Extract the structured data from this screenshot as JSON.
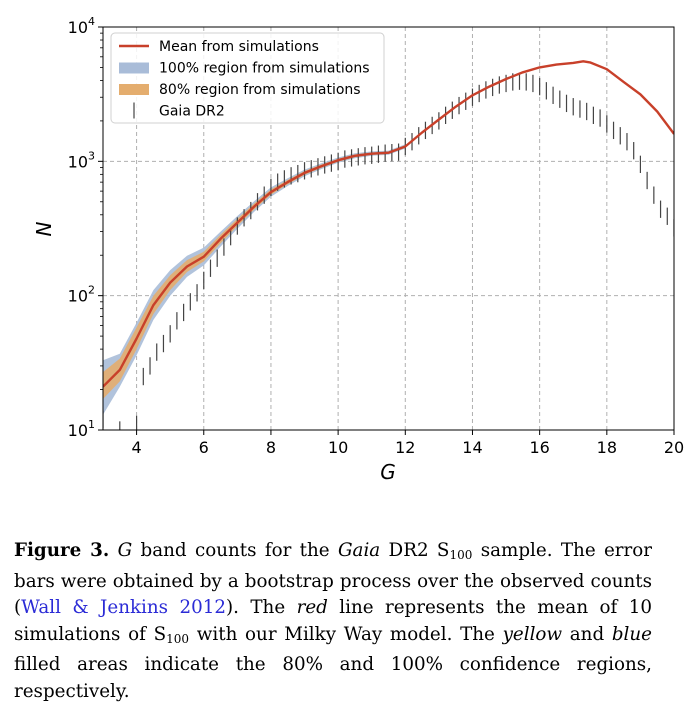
{
  "chart_data": {
    "type": "line",
    "xlabel": "G",
    "ylabel": "N",
    "xlim": [
      3,
      20
    ],
    "ylim": [
      10,
      10000
    ],
    "yscale": "log",
    "grid": true,
    "legend_placement": "top-left",
    "x_ticks": [
      4,
      6,
      8,
      10,
      12,
      14,
      16,
      18,
      20
    ],
    "x_tick_labels": [
      "4",
      "6",
      "8",
      "10",
      "12",
      "14",
      "16",
      "18",
      "20"
    ],
    "y_ticks": [
      10,
      100,
      1000,
      10000
    ],
    "y_tick_labels": [
      {
        "base": "10",
        "exp": "1"
      },
      {
        "base": "10",
        "exp": "2"
      },
      {
        "base": "10",
        "exp": "3"
      },
      {
        "base": "10",
        "exp": "4"
      }
    ],
    "legend": [
      {
        "label": "Mean from simulations",
        "kind": "line",
        "color": "#c8402a"
      },
      {
        "label": "100% region from simulations",
        "kind": "patch",
        "color": "#a9bcd8"
      },
      {
        "label": "80% region from simulations",
        "kind": "patch",
        "color": "#e4ad6e"
      },
      {
        "label": "Gaia DR2",
        "kind": "errorbar",
        "color": "#444444"
      }
    ],
    "colors": {
      "mean": "#c8402a",
      "region100": "#a9bcd8",
      "region80": "#e4ad6e",
      "gaia": "#444444"
    },
    "series": [
      {
        "name": "Mean from simulations",
        "x": [
          3.0,
          3.5,
          4.0,
          4.5,
          5.0,
          5.5,
          6.0,
          6.5,
          7.0,
          7.5,
          8.0,
          8.5,
          9.0,
          9.5,
          10.0,
          10.5,
          11.0,
          11.5,
          12.0,
          12.5,
          13.0,
          13.5,
          14.0,
          14.5,
          15.0,
          15.5,
          16.0,
          16.5,
          17.0,
          17.3,
          17.5,
          18.0,
          18.5,
          19.0,
          19.5,
          20.0
        ],
        "y": [
          21,
          28,
          48,
          85,
          125,
          165,
          195,
          265,
          350,
          460,
          590,
          700,
          820,
          920,
          1020,
          1100,
          1140,
          1160,
          1290,
          1640,
          2050,
          2550,
          3100,
          3600,
          4100,
          4600,
          5000,
          5250,
          5400,
          5550,
          5450,
          4850,
          3900,
          3150,
          2350,
          1600
        ]
      },
      {
        "name": "100% region from simulations",
        "x": [
          3.0,
          3.5,
          4.0,
          4.5,
          5.0,
          5.5,
          6.0,
          6.5,
          7.0,
          7.5,
          8.0,
          8.5,
          9.0,
          9.5,
          10.0,
          10.5,
          11.0,
          11.5,
          12.0
        ],
        "lower": [
          13,
          21,
          36,
          66,
          100,
          138,
          168,
          232,
          315,
          420,
          545,
          655,
          775,
          875,
          975,
          1055,
          1100,
          1120,
          1245
        ],
        "upper": [
          33,
          37,
          63,
          110,
          155,
          198,
          228,
          300,
          392,
          505,
          640,
          748,
          868,
          968,
          1068,
          1148,
          1185,
          1203,
          1340
        ]
      },
      {
        "name": "80% region from simulations",
        "x": [
          3.0,
          3.5,
          4.0,
          4.5,
          5.0,
          5.5,
          6.0,
          6.5,
          7.0,
          7.5,
          8.0,
          8.5,
          9.0,
          9.5,
          10.0,
          10.5,
          11.0,
          11.5,
          12.0
        ],
        "lower": [
          17,
          23,
          40,
          73,
          110,
          150,
          180,
          246,
          330,
          437,
          564,
          673,
          793,
          893,
          993,
          1073,
          1116,
          1136,
          1262
        ],
        "upper": [
          27,
          34,
          58,
          100,
          142,
          184,
          212,
          285,
          374,
          485,
          618,
          727,
          847,
          947,
          1047,
          1127,
          1164,
          1184,
          1318
        ]
      },
      {
        "name": "Gaia DR2",
        "kind": "errorbar",
        "x": [
          3.0,
          3.5,
          4.0,
          4.2,
          4.4,
          4.6,
          4.8,
          5.0,
          5.2,
          5.4,
          5.6,
          5.8,
          6.0,
          6.2,
          6.4,
          6.6,
          6.8,
          7.0,
          7.2,
          7.4,
          7.6,
          7.8,
          8.0,
          8.2,
          8.4,
          8.6,
          8.8,
          9.0,
          9.2,
          9.4,
          9.6,
          9.8,
          10.0,
          10.2,
          10.4,
          10.6,
          10.8,
          11.0,
          11.2,
          11.4,
          11.6,
          11.8,
          12.0,
          12.2,
          12.4,
          12.6,
          12.8,
          13.0,
          13.2,
          13.4,
          13.6,
          13.8,
          14.0,
          14.2,
          14.4,
          14.6,
          14.8,
          15.0,
          15.2,
          15.4,
          15.6,
          15.8,
          16.0,
          16.2,
          16.4,
          16.6,
          16.8,
          17.0,
          17.2,
          17.4,
          17.6,
          17.8,
          18.0,
          18.2,
          18.4,
          18.6,
          18.8,
          19.0,
          19.2,
          19.4,
          19.6,
          19.8,
          20.0
        ],
        "y": [
          12,
          10,
          11,
          25,
          30,
          38,
          44,
          52,
          65,
          75,
          90,
          105,
          130,
          160,
          190,
          230,
          275,
          330,
          380,
          430,
          500,
          560,
          640,
          700,
          740,
          780,
          810,
          850,
          880,
          910,
          940,
          970,
          1000,
          1040,
          1060,
          1080,
          1100,
          1110,
          1130,
          1150,
          1160,
          1170,
          1290,
          1400,
          1550,
          1700,
          1850,
          2000,
          2200,
          2400,
          2600,
          2800,
          3000,
          3200,
          3400,
          3550,
          3700,
          3800,
          3900,
          3950,
          3900,
          3800,
          3600,
          3350,
          3100,
          2900,
          2700,
          2550,
          2450,
          2350,
          2200,
          2100,
          1900,
          1700,
          1550,
          1400,
          1200,
          950,
          720,
          560,
          440,
          390,
          320
        ]
      }
    ]
  },
  "caption": {
    "label": "Figure 3.",
    "p1": "G",
    "p2": " band counts for the ",
    "p3": "Gaia",
    "p4": " DR2 S",
    "p5": "100",
    "p6": " sample. The error bars were obtained by a bootstrap process over the observed counts (",
    "p7": "Wall & Jenkins 2012",
    "p8": "). The ",
    "p9": "red",
    "p10": " line represents the mean of 10 simulations of S",
    "p11": "100",
    "p12": " with our Milky Way model. The ",
    "p13": "yellow",
    "p14": " and ",
    "p15": "blue",
    "p16": " filled areas indicate the 80% and 100% confidence regions, respectively."
  }
}
